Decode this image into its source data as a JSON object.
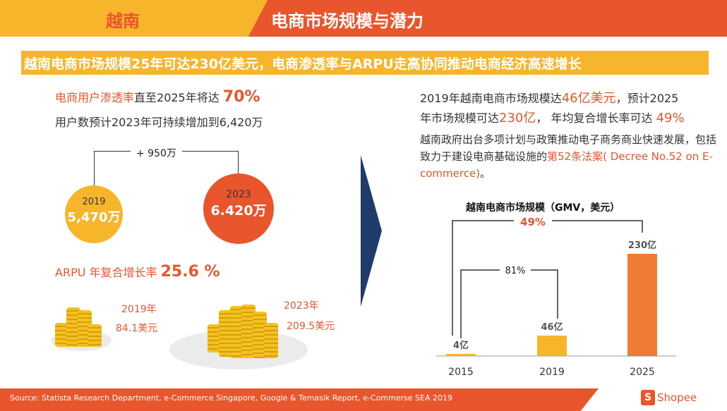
{
  "header": {
    "left_title": "越南",
    "right_title": "电商市场规模与潜力"
  },
  "banner": "越南电商市场规模25年可达230亿美元，电商渗透率与ARPU走高协同推动电商经济高速增长",
  "left": {
    "penetration_prefix": "电商用户渗透率",
    "penetration_mid": "直至2025年将达 ",
    "penetration_value": "70%",
    "users_line": "用户数预计2023年可持续增加到6,420万",
    "increase_label": "+ 950万",
    "users_2019_year": "2019",
    "users_2019_value": "5,470万",
    "users_2023_year": "2023",
    "users_2023_value": "6.420万",
    "arpu_prefix": "ARPU 年复合增长率 ",
    "arpu_value": "25.6 %",
    "arpu_2019_year": "2019年",
    "arpu_2019_value": "84.1美元",
    "arpu_2023_year": "2023年",
    "arpu_2023_value": "209.5美元"
  },
  "right": {
    "line1_a": "2019年越南电商市场规模达",
    "line1_b": "46亿美元",
    "line1_c": "，预计2025",
    "line2_a": "年市场规模可达",
    "line2_b": "230亿",
    "line2_c": "， 年均复合增长率可达 ",
    "line2_d": "49%",
    "policy_a": "越南政府出台多项计划与政策推动电子商务商业快速发展，包括致力于建设电商基础设施的",
    "policy_b": "第52条法案( Decree No.52 on E-commerce)",
    "policy_c": "。"
  },
  "chart_data": {
    "type": "bar",
    "title": "越南电商市场规模（GMV，美元）",
    "categories": [
      "2015",
      "2019",
      "2025"
    ],
    "values": [
      4,
      46,
      230
    ],
    "value_labels": [
      "4亿",
      "46亿",
      "230亿"
    ],
    "unit": "亿美元",
    "colors": [
      "#f7b52c",
      "#f7b52c",
      "#ef7b35"
    ],
    "annotations": [
      {
        "from": "2015",
        "to": "2019",
        "label": "81%"
      },
      {
        "from": "2015",
        "to": "2025",
        "label": "49%"
      }
    ],
    "ylim": [
      0,
      230
    ]
  },
  "footer": {
    "source": "Source: Statista Research Department, e-Commerce Singapore, Google & Temasik Report, e-Commerse SEA 2019",
    "logo_text": "Shopee",
    "logo_glyph": "S"
  }
}
